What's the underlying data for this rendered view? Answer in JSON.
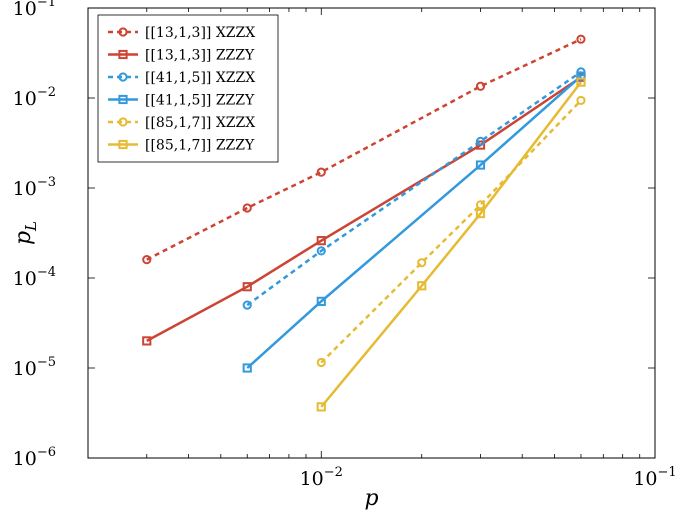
{
  "chart_data": {
    "type": "line",
    "title": "",
    "xlabel": "p",
    "ylabel": "p_L",
    "xscale": "log",
    "yscale": "log",
    "xlim": [
      0.002,
      0.1
    ],
    "ylim": [
      1e-06,
      0.1
    ],
    "xticks": [
      {
        "value": 0.01,
        "base": "10",
        "exp": "−2"
      },
      {
        "value": 0.1,
        "base": "10",
        "exp": "−1"
      }
    ],
    "yticks": [
      {
        "value": 0.1,
        "base": "10",
        "exp": "−1"
      },
      {
        "value": 0.01,
        "base": "10",
        "exp": "−2"
      },
      {
        "value": 0.001,
        "base": "10",
        "exp": "−3"
      },
      {
        "value": 0.0001,
        "base": "10",
        "exp": "−4"
      },
      {
        "value": 1e-05,
        "base": "10",
        "exp": "−5"
      },
      {
        "value": 1e-06,
        "base": "10",
        "exp": "−6"
      }
    ],
    "legend_position": "top-left",
    "series": [
      {
        "name": "[[13,1,3]] XZZX",
        "color": "#cc4433",
        "dashed": true,
        "marker": "circle",
        "x": [
          0.003,
          0.006,
          0.01,
          0.03,
          0.06
        ],
        "y": [
          0.00016,
          0.0006,
          0.0015,
          0.0135,
          0.045
        ]
      },
      {
        "name": "[[13,1,3]] ZZZY",
        "color": "#cc4433",
        "dashed": false,
        "marker": "square",
        "x": [
          0.003,
          0.006,
          0.01,
          0.03,
          0.06
        ],
        "y": [
          2e-05,
          8e-05,
          0.00026,
          0.003,
          0.017
        ]
      },
      {
        "name": "[[41,1,5]] XZZX",
        "color": "#3399dd",
        "dashed": true,
        "marker": "circle",
        "x": [
          0.006,
          0.01,
          0.03,
          0.06
        ],
        "y": [
          5e-05,
          0.0002,
          0.0033,
          0.0195
        ]
      },
      {
        "name": "[[41,1,5]] ZZZY",
        "color": "#3399dd",
        "dashed": false,
        "marker": "square",
        "x": [
          0.006,
          0.01,
          0.03,
          0.06
        ],
        "y": [
          1e-05,
          5.5e-05,
          0.0018,
          0.0175
        ]
      },
      {
        "name": "[[85,1,7]] XZZX",
        "color": "#e6bb33",
        "dashed": true,
        "marker": "circle",
        "x": [
          0.01,
          0.02,
          0.03,
          0.06
        ],
        "y": [
          1.15e-05,
          0.000148,
          0.00065,
          0.0094
        ]
      },
      {
        "name": "[[85,1,7]] ZZZY",
        "color": "#e6bb33",
        "dashed": false,
        "marker": "square",
        "x": [
          0.01,
          0.02,
          0.03,
          0.06
        ],
        "y": [
          3.7e-06,
          8.2e-05,
          0.00052,
          0.015
        ]
      }
    ]
  }
}
